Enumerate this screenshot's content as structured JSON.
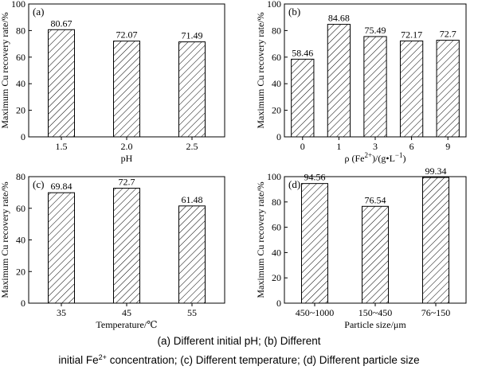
{
  "chart_data": [
    {
      "type": "bar",
      "panel_label": "(a)",
      "categories": [
        "1.5",
        "2.0",
        "2.5"
      ],
      "values": [
        80.67,
        72.07,
        71.49
      ],
      "value_labels": [
        "80.67",
        "72.07",
        "71.49"
      ],
      "xlabel": "pH",
      "ylabel": "Maximum Cu recovery rate/%",
      "ylim": [
        0,
        100
      ],
      "yticks": [
        "0",
        "20",
        "40",
        "60",
        "80",
        "100"
      ]
    },
    {
      "type": "bar",
      "panel_label": "(b)",
      "categories": [
        "0",
        "1",
        "3",
        "6",
        "9"
      ],
      "values": [
        58.46,
        84.68,
        75.49,
        72.17,
        72.7
      ],
      "value_labels": [
        "58.46",
        "84.68",
        "75.49",
        "72.17",
        "72.7"
      ],
      "xlabel": "ρ (Fe2+)/(g•L−1)",
      "ylabel": "Maximum Cu recovery rate/%",
      "ylim": [
        0,
        100
      ],
      "yticks": [
        "0",
        "20",
        "40",
        "60",
        "80",
        "100"
      ]
    },
    {
      "type": "bar",
      "panel_label": "(c)",
      "categories": [
        "35",
        "45",
        "55"
      ],
      "values": [
        69.84,
        72.7,
        61.48
      ],
      "value_labels": [
        "69.84",
        "72.7",
        "61.48"
      ],
      "xlabel": "Temperature/℃",
      "ylabel": "Maximum Cu recovery rate/%",
      "ylim": [
        0,
        80
      ],
      "yticks": [
        "0",
        "20",
        "40",
        "60",
        "80"
      ]
    },
    {
      "type": "bar",
      "panel_label": "(d)",
      "categories": [
        "450~1000",
        "150~450",
        "76~150"
      ],
      "values": [
        94.56,
        76.54,
        99.34
      ],
      "value_labels": [
        "94.56",
        "76.54",
        "99.34"
      ],
      "xlabel": "Particle size/μm",
      "ylabel": "Maximum Cu recovery rate/%",
      "ylim": [
        0,
        100
      ],
      "yticks": [
        "0",
        "20",
        "40",
        "60",
        "80",
        "100"
      ]
    }
  ],
  "caption": {
    "line1": "(a) Different initial pH; (b) Different",
    "line2_prefix": "initial Fe",
    "line2_sup": "2+",
    "line2_suffix": " concentration; (c) Different temperature; (d) Different particle size"
  }
}
